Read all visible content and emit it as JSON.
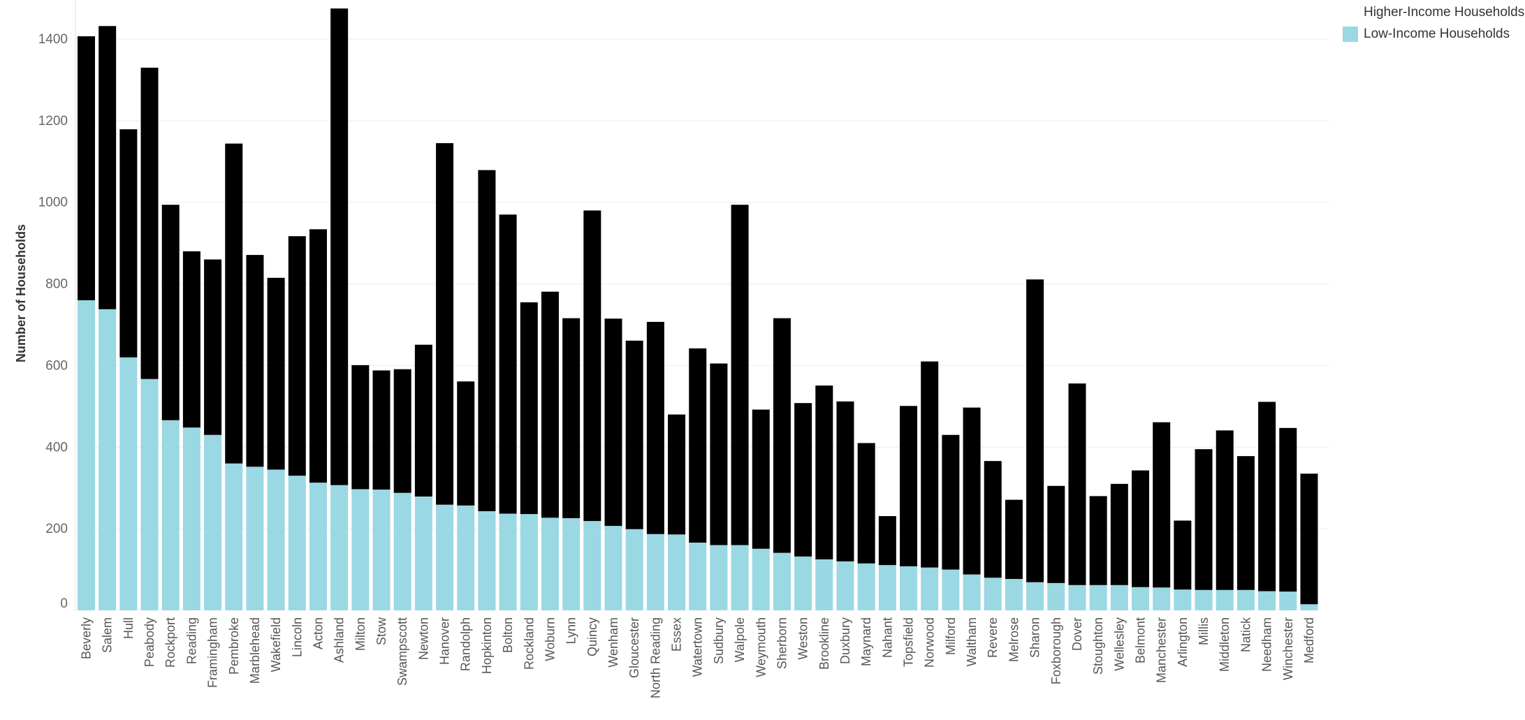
{
  "colors": {
    "higher": "#88cf7f",
    "low": "#9ad8e3"
  },
  "legend": {
    "higher_label": "Higher-Income Households",
    "low_label": "Low-Income Households"
  },
  "chart_data": {
    "type": "bar",
    "stacked": true,
    "ylabel": "Number of Households",
    "ylim": [
      0,
      1480
    ],
    "yticks": [
      0,
      200,
      400,
      600,
      800,
      1000,
      1200,
      1400
    ],
    "grid": true,
    "legend_position": "top-right",
    "categories": [
      "Beverly",
      "Salem",
      "Hull",
      "Peabody",
      "Rockport",
      "Reading",
      "Framingham",
      "Pembroke",
      "Marblehead",
      "Wakefield",
      "Lincoln",
      "Acton",
      "Ashland",
      "Milton",
      "Stow",
      "Swampscott",
      "Newton",
      "Hanover",
      "Randolph",
      "Hopkinton",
      "Bolton",
      "Rockland",
      "Woburn",
      "Lynn",
      "Quincy",
      "Wenham",
      "Gloucester",
      "North Reading",
      "Essex",
      "Watertown",
      "Sudbury",
      "Walpole",
      "Weymouth",
      "Sherborn",
      "Weston",
      "Brookline",
      "Duxbury",
      "Maynard",
      "Nahant",
      "Topsfield",
      "Norwood",
      "Milford",
      "Waltham",
      "Revere",
      "Melrose",
      "Sharon",
      "Foxborough",
      "Dover",
      "Stoughton",
      "Wellesley",
      "Belmont",
      "Manchester",
      "Arlington",
      "Millis",
      "Middleton",
      "Natick",
      "Needham",
      "Winchester",
      "Medford"
    ],
    "series": [
      {
        "name": "Low-Income Households",
        "values": [
          760,
          738,
          620,
          567,
          466,
          448,
          430,
          360,
          352,
          345,
          330,
          313,
          307,
          297,
          296,
          288,
          279,
          259,
          257,
          243,
          237,
          236,
          227,
          226,
          219,
          207,
          199,
          187,
          186,
          166,
          160,
          160,
          151,
          141,
          132,
          125,
          120,
          115,
          111,
          108,
          105,
          100,
          88,
          80,
          77,
          69,
          67,
          62,
          62,
          62,
          57,
          56,
          51,
          50,
          50,
          50,
          47,
          46,
          15
        ],
        "stack_tops": [
          1407,
          1432,
          1179,
          1330,
          994,
          880,
          860,
          1144,
          871,
          815,
          917,
          934,
          1475,
          601,
          588,
          591,
          651,
          1145,
          561,
          1079,
          970,
          755,
          781,
          716,
          980,
          715,
          661,
          707,
          480,
          642,
          605,
          994,
          492,
          716,
          508,
          551,
          512,
          410,
          231,
          501,
          610,
          430,
          497,
          366,
          271,
          811,
          305,
          556,
          280,
          310,
          343,
          461,
          220,
          395,
          441,
          378,
          511,
          447,
          335
        ]
      },
      {
        "name": "Higher-Income Households",
        "values": [
          647,
          694,
          559,
          763,
          528,
          432,
          430,
          784,
          519,
          470,
          587,
          621,
          1168,
          304,
          292,
          303,
          372,
          886,
          304,
          836,
          733,
          519,
          554,
          490,
          761,
          508,
          462,
          520,
          294,
          476,
          445,
          834,
          341,
          575,
          376,
          426,
          392,
          295,
          120,
          393,
          505,
          330,
          409,
          286,
          194,
          742,
          238,
          494,
          218,
          248,
          286,
          405,
          169,
          345,
          391,
          328,
          464,
          401,
          320
        ]
      }
    ]
  }
}
